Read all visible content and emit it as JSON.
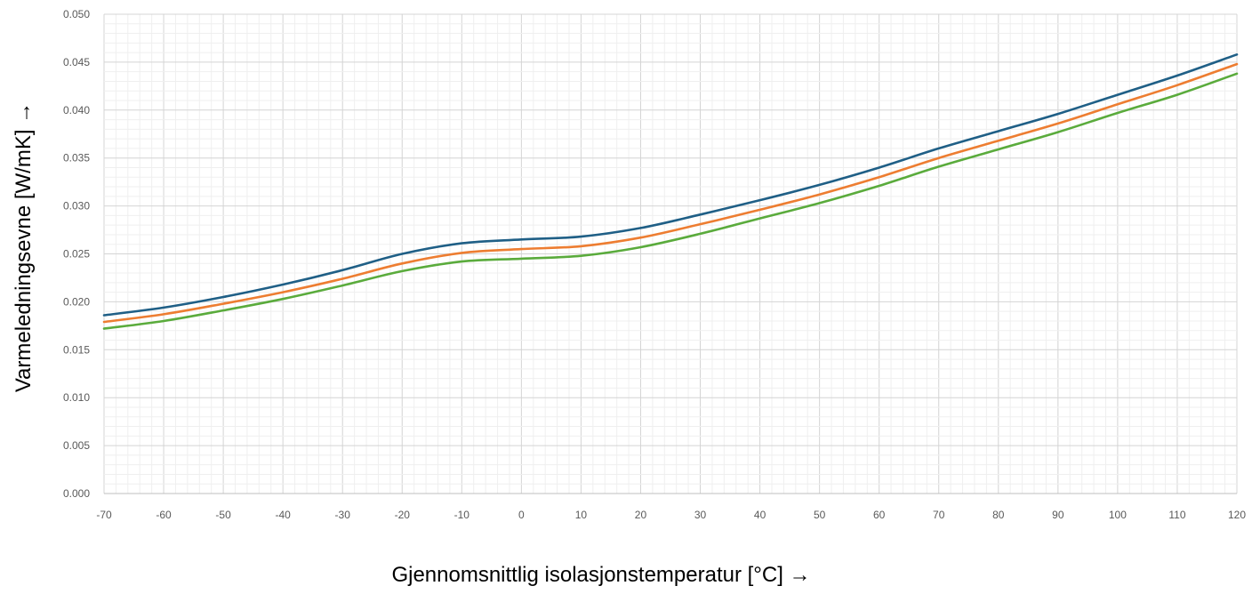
{
  "chart_data": {
    "type": "line",
    "title": "",
    "xlabel": "Gjennomsnittlig isolasjonstemperatur [°C] →",
    "ylabel": "Varmeledningsevne [W/mK] →",
    "xlim": [
      -70,
      120
    ],
    "ylim": [
      0,
      0.05
    ],
    "x_ticks": [
      "-70",
      "-60",
      "-50",
      "-40",
      "-30",
      "-20",
      "-10",
      "0",
      "10",
      "20",
      "30",
      "40",
      "50",
      "60",
      "70",
      "80",
      "90",
      "100",
      "110",
      "120"
    ],
    "y_ticks": [
      "0.000",
      "0.005",
      "0.010",
      "0.015",
      "0.020",
      "0.025",
      "0.030",
      "0.035",
      "0.040",
      "0.045",
      "0.050"
    ],
    "grid": true,
    "x": [
      -70,
      -60,
      -50,
      -40,
      -30,
      -20,
      -10,
      0,
      10,
      20,
      30,
      40,
      50,
      60,
      70,
      80,
      90,
      100,
      110,
      120
    ],
    "series": [
      {
        "color": "#1f5f86",
        "values": [
          0.0186,
          0.0194,
          0.0205,
          0.0218,
          0.0233,
          0.025,
          0.0261,
          0.0265,
          0.0268,
          0.0277,
          0.0291,
          0.0306,
          0.0322,
          0.034,
          0.036,
          0.0378,
          0.0396,
          0.0416,
          0.0436,
          0.0458
        ]
      },
      {
        "color": "#ed7d31",
        "values": [
          0.0179,
          0.0187,
          0.0198,
          0.021,
          0.0224,
          0.024,
          0.0251,
          0.0255,
          0.0258,
          0.0267,
          0.0281,
          0.0296,
          0.0312,
          0.033,
          0.035,
          0.0368,
          0.0386,
          0.0406,
          0.0426,
          0.0448
        ]
      },
      {
        "color": "#5aab3c",
        "values": [
          0.0172,
          0.018,
          0.0191,
          0.0203,
          0.0217,
          0.0232,
          0.0242,
          0.0245,
          0.0248,
          0.0257,
          0.0271,
          0.0287,
          0.0303,
          0.0321,
          0.0341,
          0.0359,
          0.0377,
          0.0397,
          0.0416,
          0.0438
        ]
      }
    ]
  }
}
